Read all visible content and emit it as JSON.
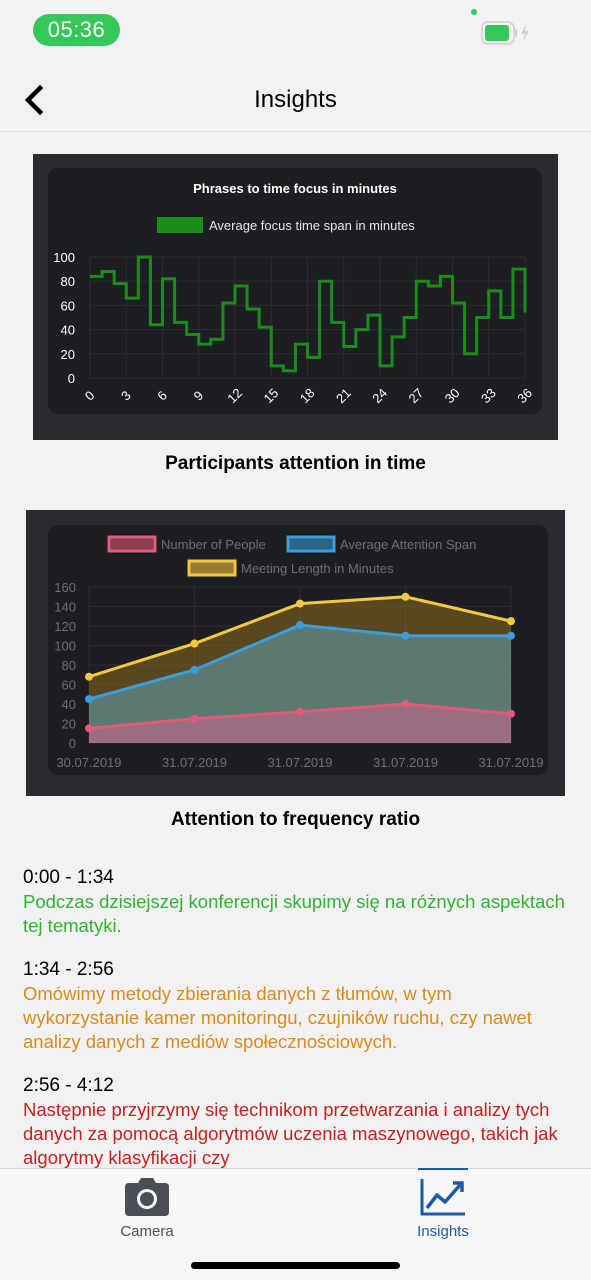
{
  "status_bar": {
    "time": "05:36"
  },
  "nav": {
    "title": "Insights"
  },
  "charts": [
    {
      "caption": "Participants attention in time"
    },
    {
      "caption": "Attention to frequency ratio"
    }
  ],
  "chart_data": [
    {
      "type": "line",
      "title": "Phrases to time focus in minutes",
      "series": [
        {
          "name": "Average focus time span in minutes",
          "color": "#1a8c1a",
          "step": true,
          "x": [
            0,
            1,
            2,
            3,
            4,
            5,
            6,
            7,
            8,
            9,
            10,
            11,
            12,
            13,
            14,
            15,
            16,
            17,
            18,
            19,
            20,
            21,
            22,
            23,
            24,
            25,
            26,
            27,
            28,
            29,
            30,
            31,
            32,
            33,
            34,
            35,
            36
          ],
          "values": [
            84,
            88,
            78,
            66,
            100,
            44,
            82,
            46,
            36,
            28,
            32,
            62,
            76,
            57,
            42,
            10,
            6,
            28,
            17,
            80,
            46,
            26,
            40,
            52,
            10,
            34,
            50,
            80,
            76,
            84,
            62,
            20,
            50,
            72,
            50,
            90,
            54
          ]
        }
      ],
      "x_ticks": [
        "0",
        "3",
        "6",
        "9",
        "12",
        "15",
        "18",
        "21",
        "24",
        "27",
        "30",
        "33",
        "36"
      ],
      "y_ticks": [
        "0",
        "20",
        "40",
        "60",
        "80",
        "100"
      ],
      "ylim": [
        0,
        100
      ],
      "legend": "top",
      "grid": true
    },
    {
      "type": "area",
      "categories": [
        "30.07.2019",
        "31.07.2019",
        "31.07.2019",
        "31.07.2019",
        "31.07.2019"
      ],
      "series": [
        {
          "name": "Number of People",
          "color": "#e05a7a",
          "values": [
            15,
            25,
            32,
            40,
            30
          ]
        },
        {
          "name": "Average Attention Span",
          "color": "#3a9ddc",
          "values": [
            45,
            75,
            121,
            110,
            110
          ]
        },
        {
          "name": "Meeting Length in Minutes",
          "color": "#f5c842",
          "values": [
            68,
            102,
            143,
            150,
            125
          ]
        }
      ],
      "y_ticks": [
        "0",
        "20",
        "40",
        "60",
        "80",
        "100",
        "120",
        "140",
        "160"
      ],
      "ylim": [
        0,
        160
      ],
      "legend": "top",
      "grid": true
    }
  ],
  "transcript": [
    {
      "time": "0:00 - 1:34",
      "text": "Podczas dzisiejszej konferencji skupimy się na różnych aspektach tej tematyki.",
      "color": "#2db52d"
    },
    {
      "time": "1:34 - 2:56",
      "text": "Omówimy metody zbierania danych z tłumów, w tym wykorzystanie kamer monitoringu, czujników ruchu, czy nawet analizy danych z mediów społecznościowych.",
      "color": "#d98c1a"
    },
    {
      "time": "2:56 - 4:12",
      "text": "Następnie przyjrzymy się technikom przetwarzania i analizy tych danych za pomocą algorytmów uczenia maszynowego, takich jak algorytmy klasyfikacji czy",
      "color": "#c8201e"
    }
  ],
  "tabs": [
    {
      "label": "Camera",
      "icon": "camera-icon",
      "active": false
    },
    {
      "label": "Insights",
      "icon": "chart-line-icon",
      "active": true
    }
  ],
  "colors": {
    "accent": "#1b5aa6",
    "status_green": "#34c759"
  }
}
